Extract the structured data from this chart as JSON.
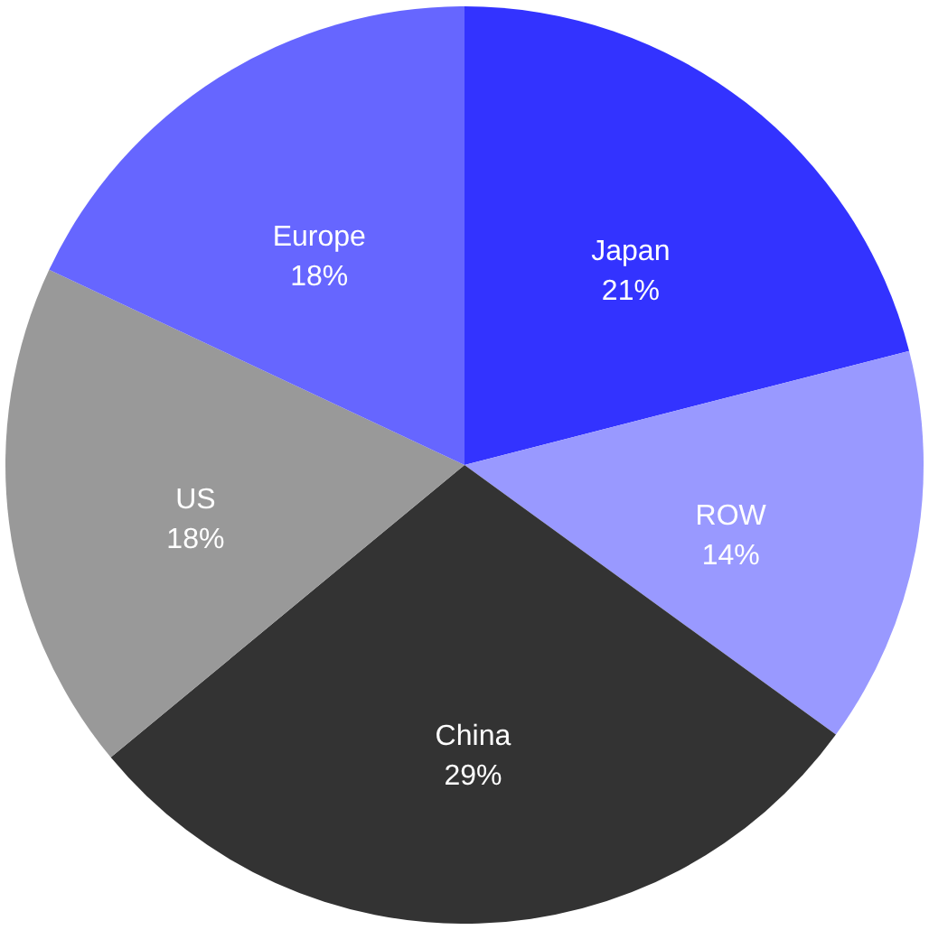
{
  "chart_data": {
    "type": "pie",
    "categories": [
      "Japan",
      "ROW",
      "China",
      "US",
      "Europe"
    ],
    "values": [
      21,
      14,
      29,
      18,
      18
    ],
    "value_labels": [
      "21%",
      "14%",
      "29%",
      "18%",
      "18%"
    ],
    "colors": [
      "#3333ff",
      "#9999ff",
      "#333333",
      "#999999",
      "#6666ff"
    ]
  }
}
